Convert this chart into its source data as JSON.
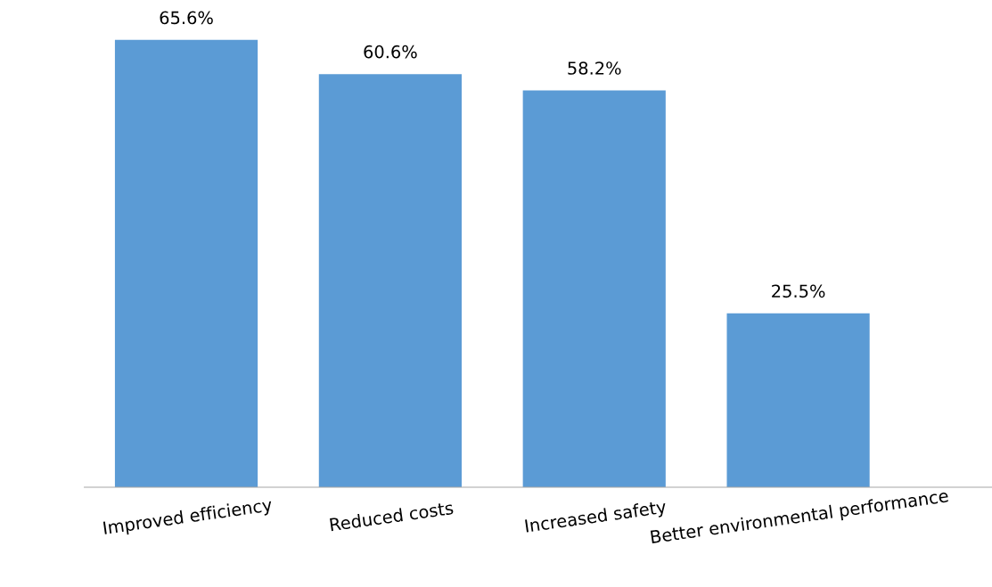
{
  "chart_data": {
    "type": "bar",
    "categories": [
      "Improved efficiency",
      "Reduced costs",
      "Increased safety",
      "Better environmental performance"
    ],
    "values": [
      65.6,
      60.6,
      58.2,
      25.5
    ],
    "value_labels": [
      "65.6%",
      "60.6%",
      "58.2%",
      "25.5%"
    ],
    "color": "#5b9bd5",
    "tick_labels": "x",
    "grid": false,
    "legend": false
  }
}
